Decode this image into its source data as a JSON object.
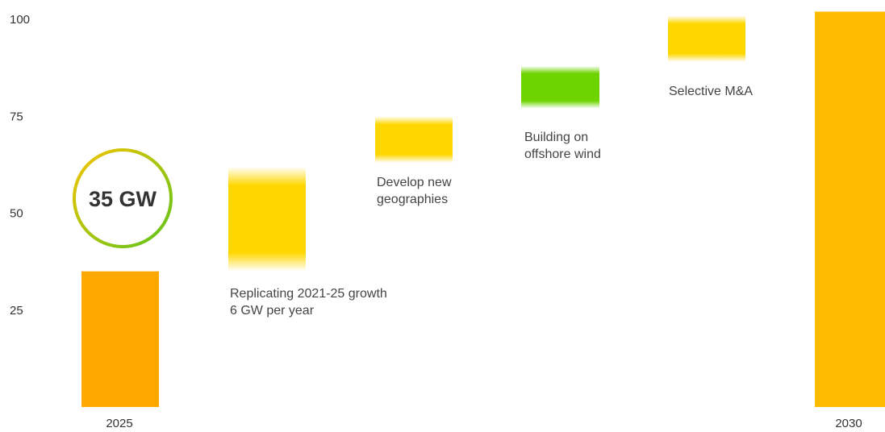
{
  "chart_data": {
    "type": "bar",
    "subtype": "waterfall",
    "ylim": [
      0,
      102
    ],
    "y_ticks": [
      "25",
      "50",
      "75",
      "100"
    ],
    "grid": false,
    "legend": "none",
    "categories": [
      "2025",
      "",
      "",
      "",
      "",
      "2030"
    ],
    "steps": [
      {
        "label": "2025",
        "kind": "total",
        "start": 0,
        "end": 35,
        "color": "#ffa800"
      },
      {
        "label": "",
        "kind": "step",
        "start": 35,
        "end": 62,
        "color": "#ffd700",
        "annotation": [
          "Replicating 2021-25 growth",
          "6 GW per year"
        ]
      },
      {
        "label": "",
        "kind": "step",
        "start": 63,
        "end": 75,
        "color": "#ffd700",
        "annotation": [
          "Develop new",
          "geographies"
        ]
      },
      {
        "label": "",
        "kind": "step",
        "start": 77,
        "end": 88,
        "color": "#6ed400",
        "annotation": [
          "Building on",
          "offshore wind"
        ]
      },
      {
        "label": "",
        "kind": "step",
        "start": 89,
        "end": 101,
        "color": "#ffd700",
        "annotation": [
          "Selective M&A"
        ]
      },
      {
        "label": "2030",
        "kind": "total",
        "start": 0,
        "end": 102,
        "color": "#ffbb00"
      }
    ],
    "badge": {
      "text": "35 GW",
      "ring_colors": [
        "#f5c400",
        "#5ec41c"
      ]
    }
  }
}
